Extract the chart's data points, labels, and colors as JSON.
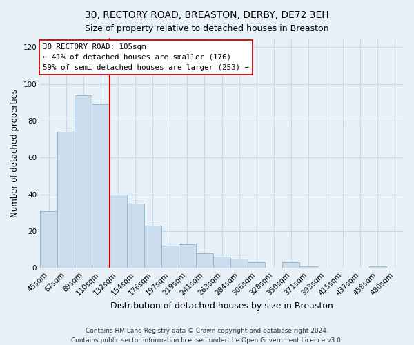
{
  "title": "30, RECTORY ROAD, BREASTON, DERBY, DE72 3EH",
  "subtitle": "Size of property relative to detached houses in Breaston",
  "xlabel": "Distribution of detached houses by size in Breaston",
  "ylabel": "Number of detached properties",
  "bar_labels": [
    "45sqm",
    "67sqm",
    "89sqm",
    "110sqm",
    "132sqm",
    "154sqm",
    "176sqm",
    "197sqm",
    "219sqm",
    "241sqm",
    "263sqm",
    "284sqm",
    "306sqm",
    "328sqm",
    "350sqm",
    "371sqm",
    "393sqm",
    "415sqm",
    "437sqm",
    "458sqm",
    "480sqm"
  ],
  "bar_values": [
    31,
    74,
    94,
    89,
    40,
    35,
    23,
    12,
    13,
    8,
    6,
    5,
    3,
    0,
    3,
    1,
    0,
    0,
    0,
    1,
    0
  ],
  "bar_color": "#ccdded",
  "bar_edge_color": "#8ab4cc",
  "vline_x_index": 3,
  "vline_color": "#cc0000",
  "annotation_text": "30 RECTORY ROAD: 105sqm\n← 41% of detached houses are smaller (176)\n59% of semi-detached houses are larger (253) →",
  "annotation_box_color": "#ffffff",
  "annotation_box_edge": "#cc0000",
  "ylim": [
    0,
    125
  ],
  "yticks": [
    0,
    20,
    40,
    60,
    80,
    100,
    120
  ],
  "footnote1": "Contains HM Land Registry data © Crown copyright and database right 2024.",
  "footnote2": "Contains public sector information licensed under the Open Government Licence v3.0.",
  "bg_color": "#e8f0f8",
  "grid_color": "#c8d8e8",
  "title_fontsize": 10,
  "subtitle_fontsize": 9,
  "xlabel_fontsize": 9,
  "ylabel_fontsize": 8.5,
  "tick_fontsize": 7.5,
  "footnote_fontsize": 6.5
}
